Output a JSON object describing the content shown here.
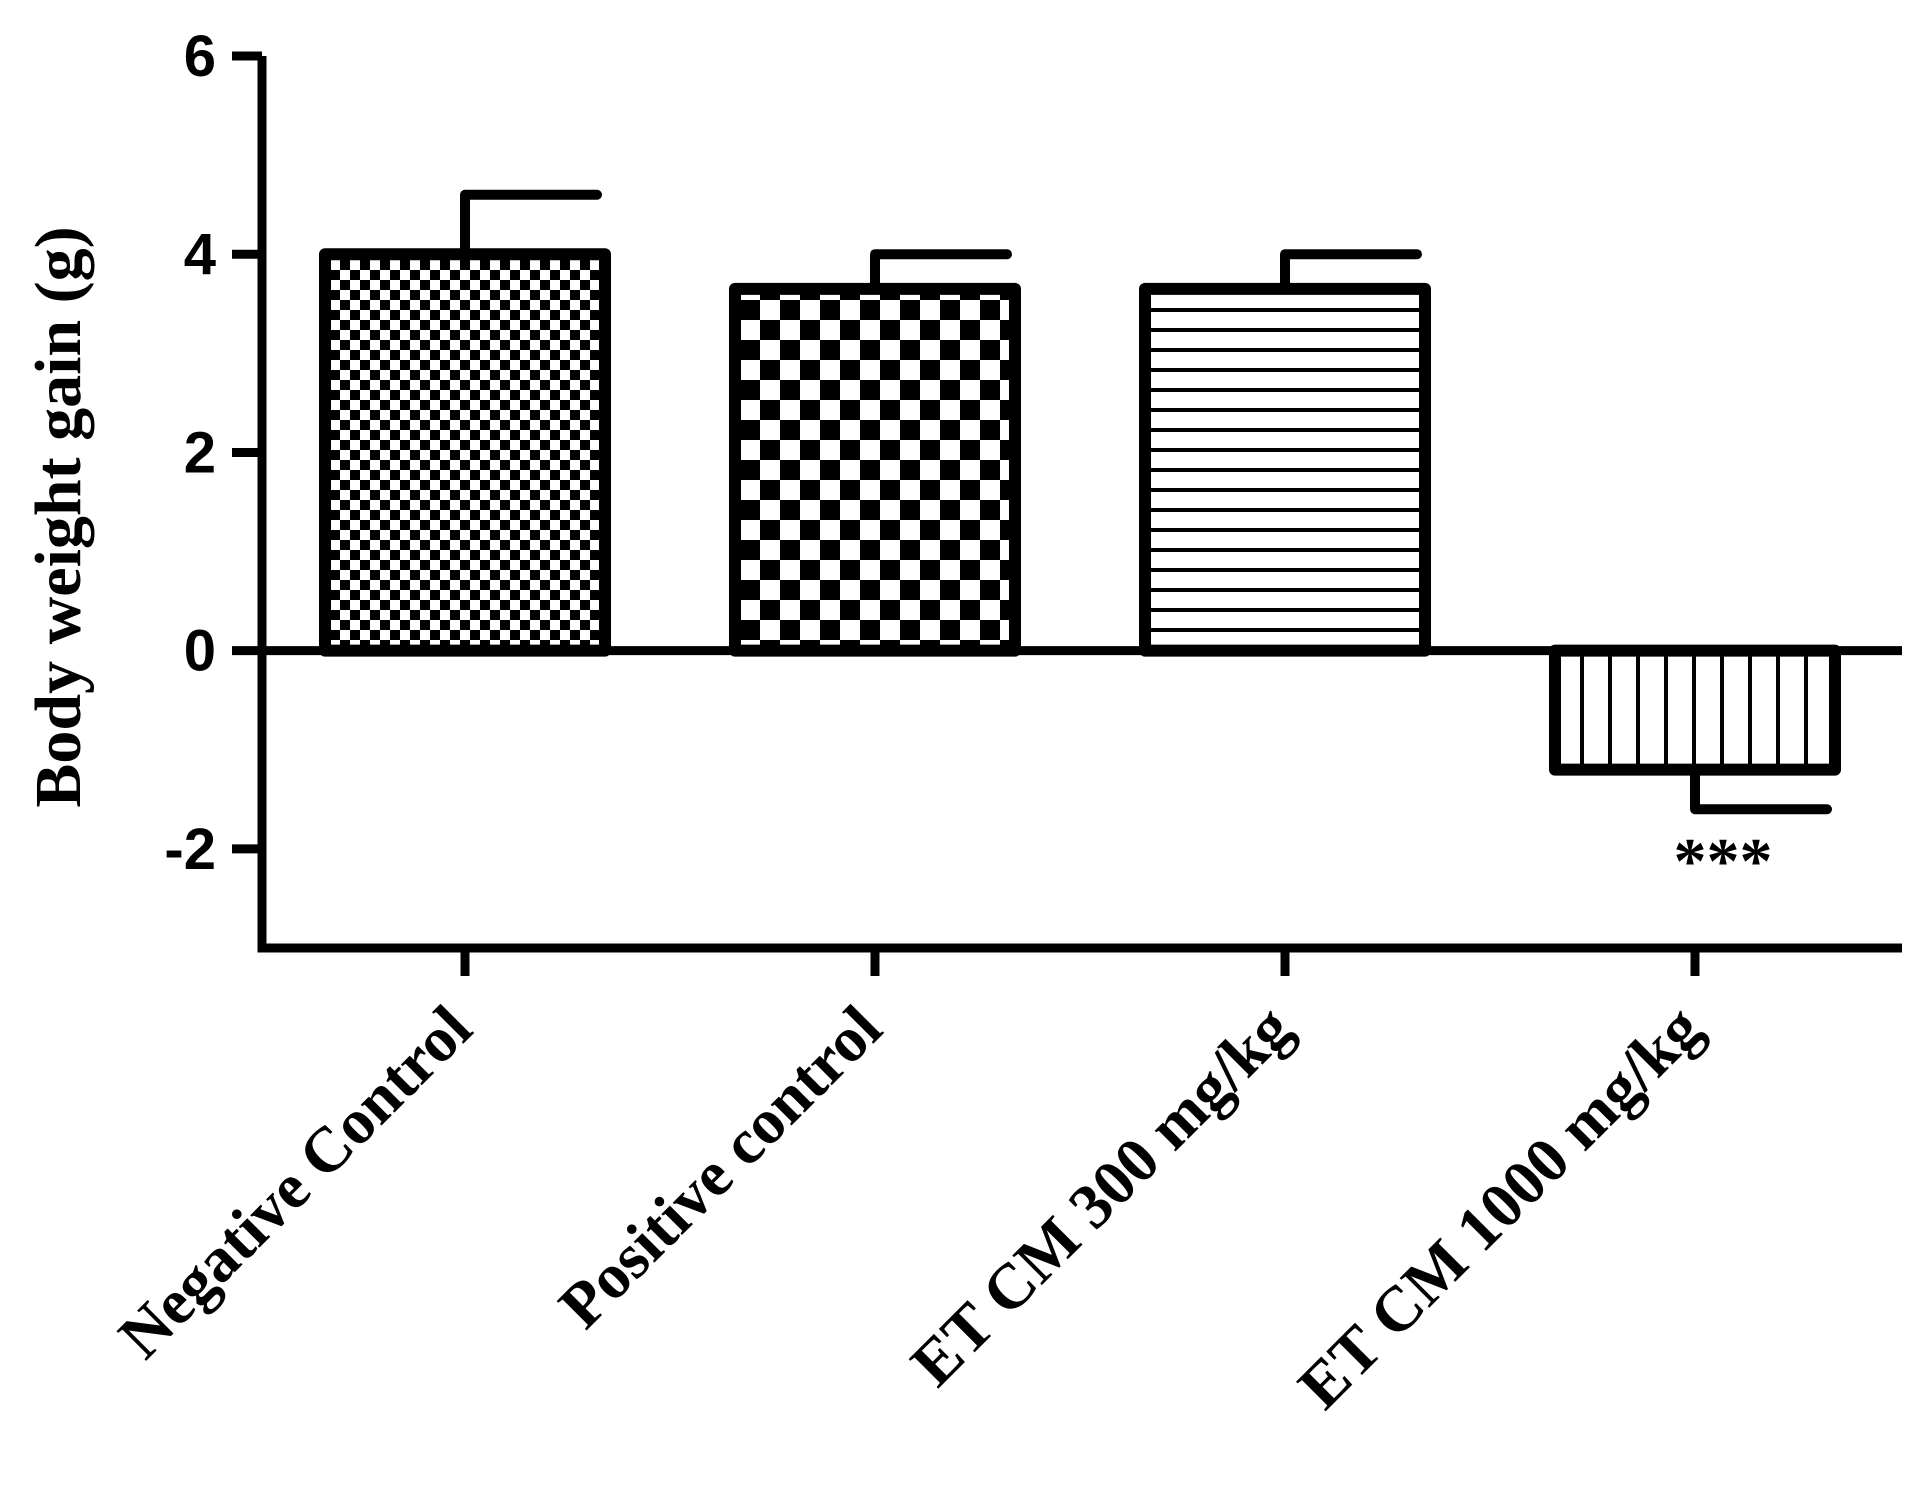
{
  "chart_data": {
    "type": "bar",
    "title": "",
    "xlabel": "",
    "ylabel": "Body weight gain (g)",
    "categories": [
      "Negative Control",
      "Positive control",
      "ET CM 300 mg/kg",
      "ET CM 1000 mg/kg"
    ],
    "values": [
      4.0,
      3.65,
      3.65,
      -1.2
    ],
    "error": [
      0.6,
      0.35,
      0.35,
      0.4
    ],
    "patterns": [
      "fine-checker",
      "coarse-checker",
      "horizontal-lines",
      "vertical-lines"
    ],
    "annotations": [
      {
        "category": "ET CM 1000 mg/kg",
        "text": "***"
      }
    ],
    "ylim": [
      -3,
      6
    ],
    "yticks": [
      -2,
      0,
      2,
      4,
      6
    ],
    "ytick_labels": [
      "-2",
      "0",
      "2",
      "4",
      "6"
    ],
    "grid": false,
    "legend": "none",
    "colors": {
      "ink": "#000000",
      "background": "#ffffff"
    }
  }
}
